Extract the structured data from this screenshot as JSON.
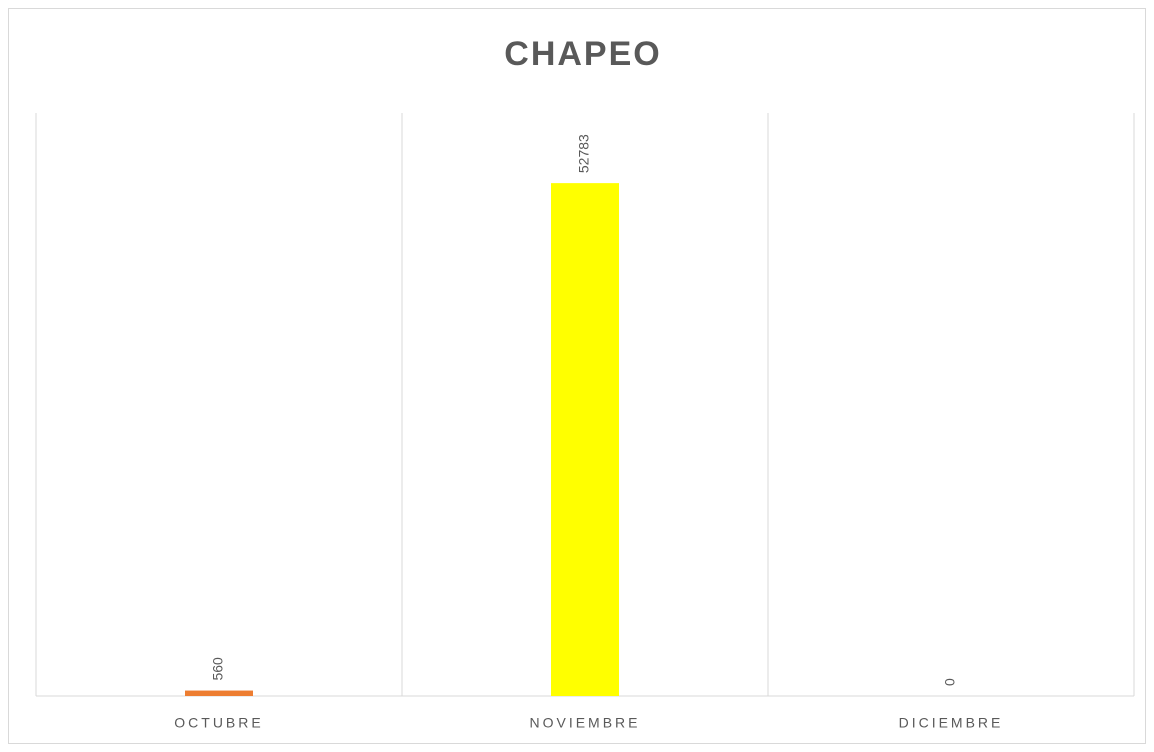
{
  "chart_data": {
    "type": "bar",
    "title": "CHAPEO",
    "categories": [
      "OCTUBRE",
      "NOVIEMBRE",
      "DICIEMBRE"
    ],
    "values": [
      560,
      52783,
      0
    ],
    "colors": [
      "#ed7d31",
      "#ffff00",
      "#a5a5a5"
    ],
    "ylim": [
      0,
      60000
    ]
  }
}
